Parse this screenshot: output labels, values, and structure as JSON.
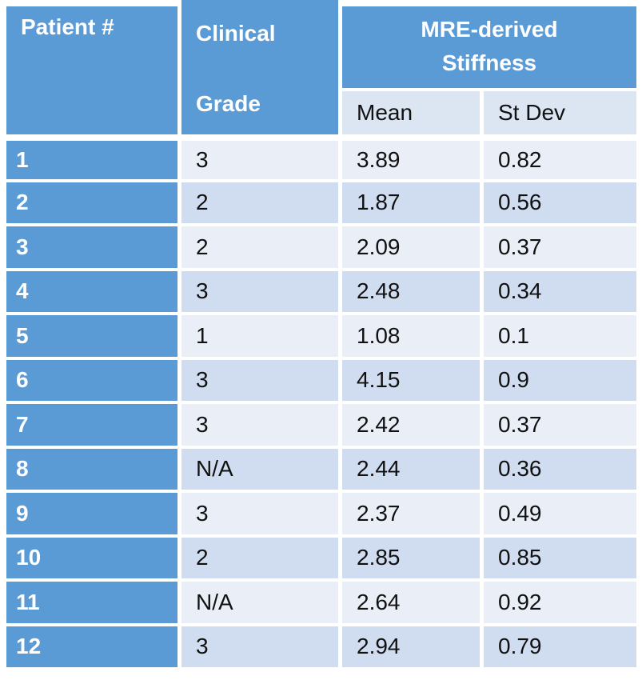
{
  "table": {
    "header": {
      "patient": "Patient #",
      "grade": "Clinical Grade",
      "stiffness": "MRE-derived Stiffness",
      "mean": "Mean",
      "stdev": "St Dev"
    },
    "rows": [
      [
        "1",
        "3",
        "3.89",
        "0.82"
      ],
      [
        "2",
        "2",
        "1.87",
        "0.56"
      ],
      [
        "3",
        "2",
        "2.09",
        "0.37"
      ],
      [
        "4",
        "3",
        "2.48",
        "0.34"
      ],
      [
        "5",
        "1",
        "1.08",
        "0.1"
      ],
      [
        "6",
        "3",
        "4.15",
        "0.9"
      ],
      [
        "7",
        "3",
        "2.42",
        "0.37"
      ],
      [
        "8",
        "N/A",
        "2.44",
        "0.36"
      ],
      [
        "9",
        "3",
        "2.37",
        "0.49"
      ],
      [
        "10",
        "2",
        "2.85",
        "0.85"
      ],
      [
        "11",
        "N/A",
        "2.64",
        "0.92"
      ],
      [
        "12",
        "3",
        "2.94",
        "0.79"
      ]
    ]
  }
}
